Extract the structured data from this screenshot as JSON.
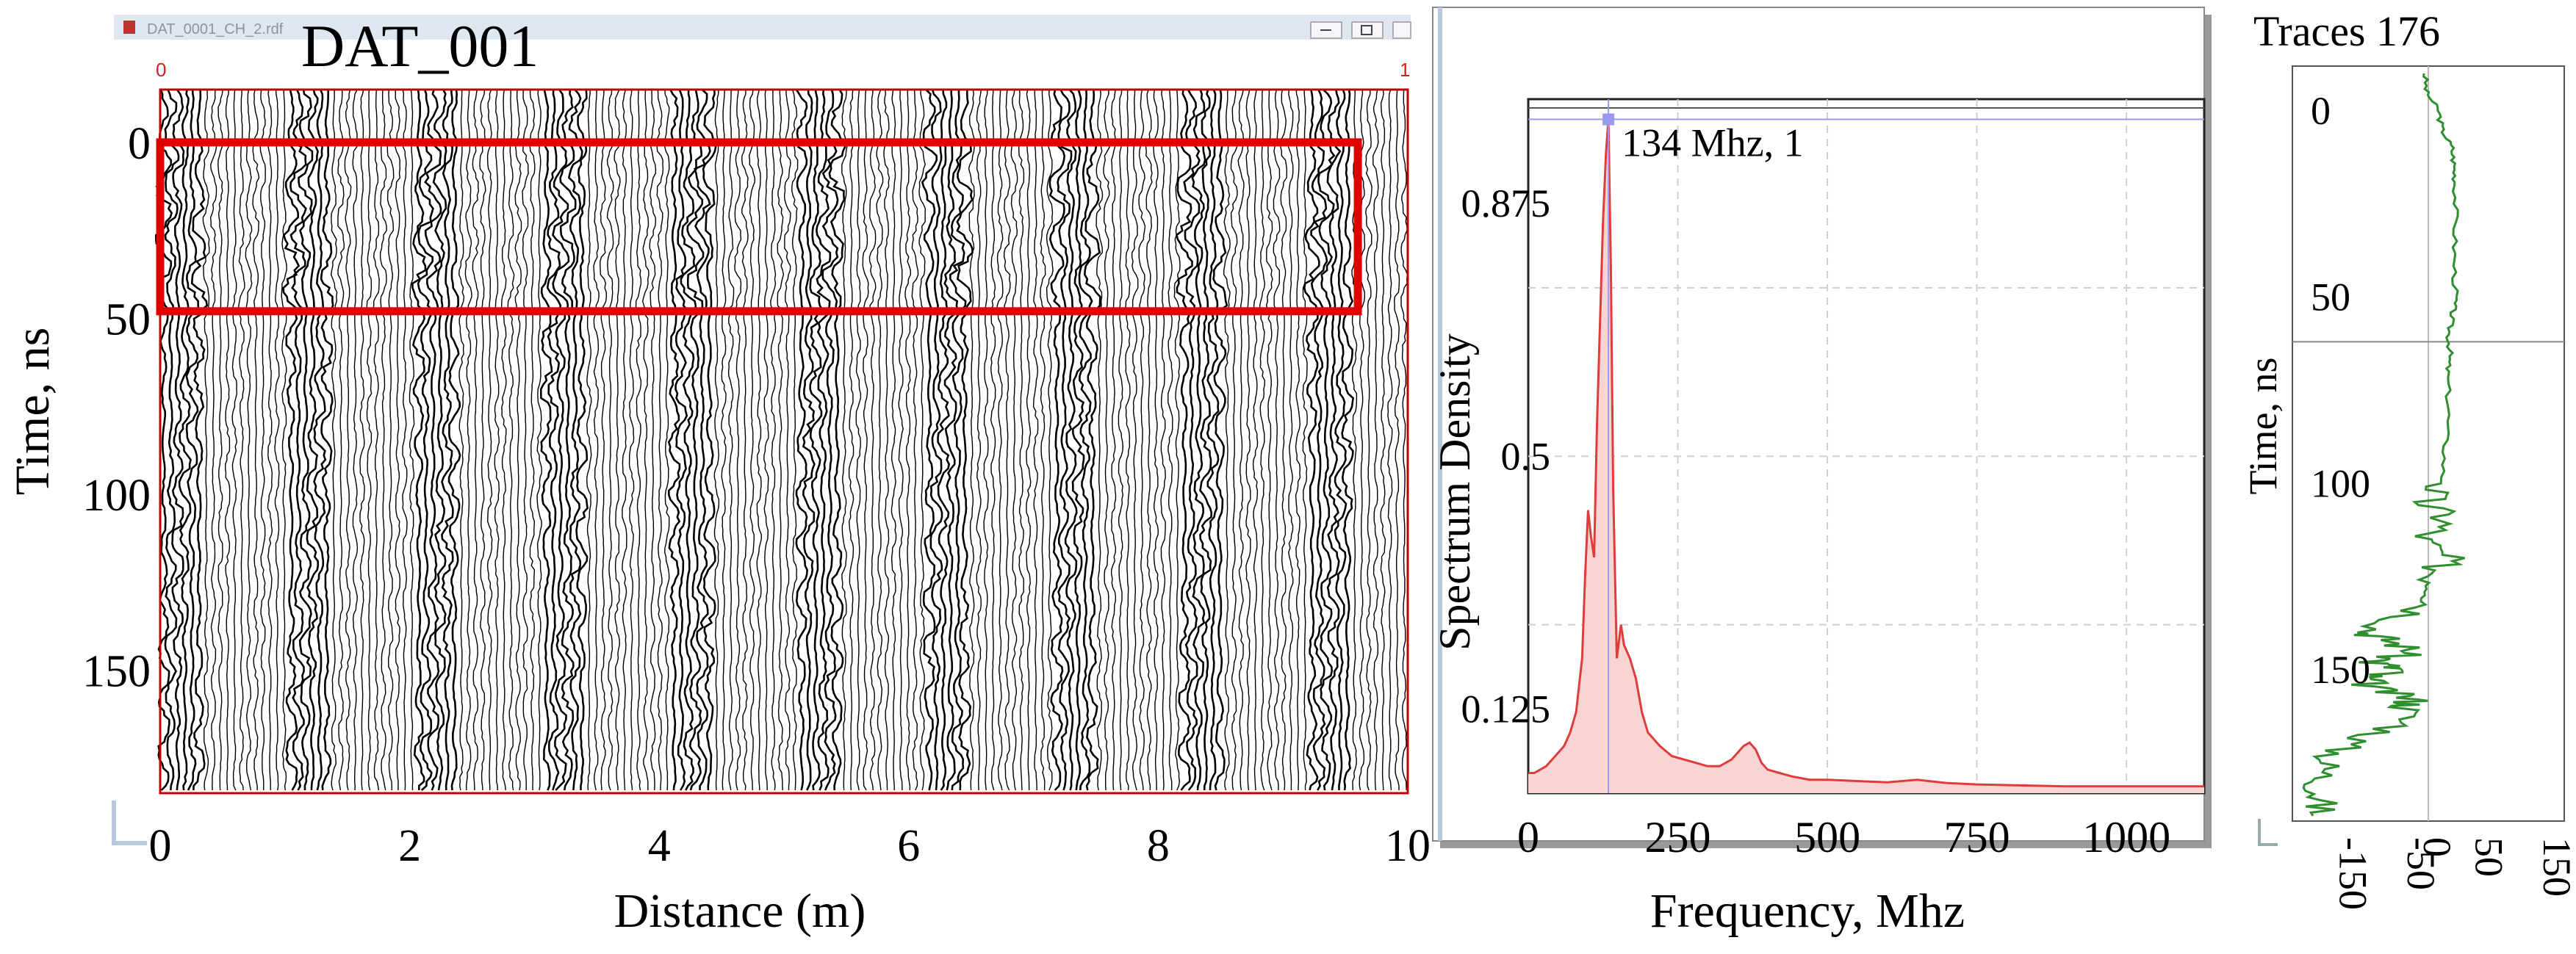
{
  "window": {
    "file_title": "DAT_0001_CH_2.rdf",
    "corner_left": "0",
    "corner_right": "1",
    "buttons": [
      "minimize",
      "maximize",
      "close"
    ]
  },
  "chart_data": [
    {
      "type": "radargram",
      "title": "DAT_001",
      "xlabel": "Distance (m)",
      "ylabel": "Time, ns",
      "x_ticks": [
        0,
        2,
        4,
        6,
        8,
        10
      ],
      "y_ticks": [
        0,
        50,
        100,
        150
      ],
      "xlim": [
        0,
        10
      ],
      "ylim": [
        -15,
        185
      ],
      "grid": false,
      "highlight_box": {
        "x_range": [
          0,
          9.6
        ],
        "y_range": [
          0,
          48
        ],
        "color": "#e00000"
      },
      "colors": {
        "trace": "#000000",
        "frame": "#c00000"
      }
    },
    {
      "type": "line",
      "title": "",
      "xlabel": "Frequency, Mhz",
      "ylabel": "Spectrum Density",
      "x_ticks": [
        0,
        250,
        500,
        750,
        1000
      ],
      "y_ticks": [
        0.125,
        0.5,
        0.875
      ],
      "xlim": [
        0,
        1130
      ],
      "ylim": [
        0,
        1.03
      ],
      "grid": true,
      "peak_annotation": {
        "text": "134 Mhz, 1",
        "x": 134,
        "y": 1
      },
      "series": [
        {
          "name": "spectrum",
          "color": "#e03c3c",
          "x": [
            0,
            10,
            20,
            30,
            40,
            50,
            60,
            70,
            80,
            90,
            95,
            100,
            105,
            110,
            115,
            120,
            125,
            130,
            134,
            138,
            142,
            148,
            155,
            160,
            170,
            180,
            190,
            200,
            210,
            220,
            240,
            260,
            280,
            300,
            320,
            340,
            360,
            370,
            380,
            390,
            400,
            420,
            440,
            470,
            500,
            550,
            600,
            650,
            700,
            750,
            800,
            900,
            1000,
            1100,
            1130
          ],
          "y": [
            0.03,
            0.03,
            0.035,
            0.04,
            0.05,
            0.06,
            0.07,
            0.09,
            0.12,
            0.2,
            0.32,
            0.42,
            0.38,
            0.35,
            0.55,
            0.7,
            0.85,
            0.95,
            1.0,
            0.78,
            0.45,
            0.2,
            0.25,
            0.22,
            0.2,
            0.17,
            0.12,
            0.09,
            0.08,
            0.07,
            0.055,
            0.05,
            0.045,
            0.04,
            0.04,
            0.05,
            0.07,
            0.075,
            0.065,
            0.045,
            0.035,
            0.03,
            0.025,
            0.02,
            0.02,
            0.018,
            0.016,
            0.02,
            0.015,
            0.013,
            0.012,
            0.01,
            0.01,
            0.01,
            0.01
          ]
        }
      ],
      "colors": {
        "fill": "#f8d4d4",
        "cursor": "#9999ee"
      }
    },
    {
      "type": "line",
      "title": "Traces 176",
      "xlabel": "",
      "ylabel": "Time, ns",
      "x_ticks": [
        -150,
        -50,
        50,
        150
      ],
      "x_tick_labels": [
        "-150",
        "-50",
        "50",
        "150"
      ],
      "extra_zero_label": "0",
      "y_ticks": [
        0,
        50,
        100,
        150
      ],
      "xlim": [
        -200,
        200
      ],
      "ylim": [
        -10,
        190
      ],
      "orientation": "vertical",
      "cursor_y": 62,
      "series": [
        {
          "name": "trace 176",
          "color": "#2f8f2f",
          "t": [
            -10,
            -5,
            0,
            5,
            10,
            15,
            20,
            30,
            40,
            50,
            55,
            60,
            65,
            70,
            80,
            90,
            100,
            105,
            110,
            115,
            120,
            125,
            130,
            135,
            140,
            142,
            145,
            148,
            150,
            152,
            155,
            158,
            160,
            165,
            170,
            175,
            180,
            185,
            190
          ],
          "amp": [
            -5,
            -3,
            15,
            20,
            35,
            38,
            40,
            40,
            38,
            40,
            35,
            30,
            32,
            28,
            30,
            25,
            20,
            -5,
            30,
            -10,
            25,
            10,
            20,
            -20,
            -90,
            -60,
            -20,
            -80,
            -40,
            -95,
            -80,
            -20,
            -30,
            -40,
            -120,
            -150,
            -155,
            -160,
            -160
          ]
        }
      ],
      "colors": {
        "cursor": "#888888",
        "zero": "#bbbbbb"
      }
    }
  ]
}
